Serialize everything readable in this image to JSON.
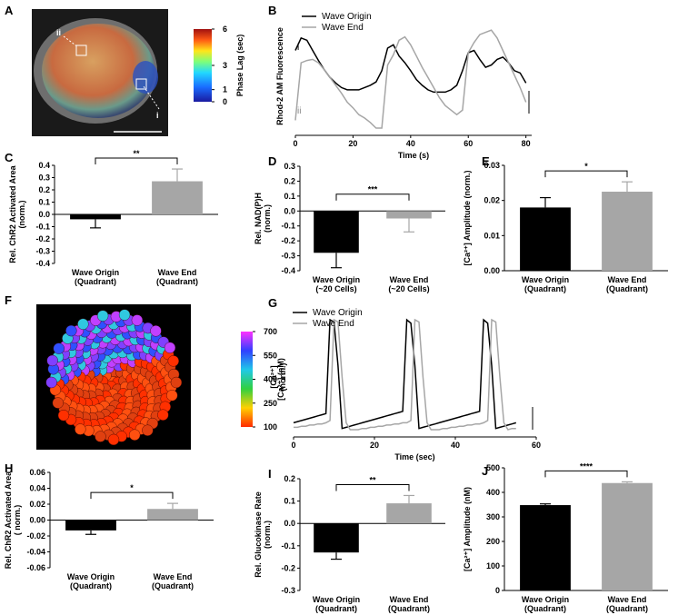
{
  "chart_data": [
    {
      "type": "image",
      "panel": "A",
      "colorbar_label": "Phase Lag (sec)",
      "colorbar_lim": [
        0,
        6
      ],
      "colorbar_ticks": [
        6,
        3,
        1,
        0
      ],
      "annotations": [
        "ii",
        "i"
      ]
    },
    {
      "type": "line",
      "panel": "B",
      "ylabel": "Rhod-2 AM  Fluorescence",
      "xlabel": "Time (s)",
      "annotations": [
        "i",
        "ii"
      ],
      "x": [
        0,
        2,
        4,
        6,
        8,
        10,
        12,
        14,
        16,
        18,
        20,
        22,
        24,
        26,
        28,
        30,
        32,
        34,
        36,
        38,
        40,
        42,
        44,
        46,
        48,
        50,
        52,
        54,
        56,
        58,
        60,
        62,
        64,
        66,
        68,
        70,
        72,
        74,
        76,
        78,
        80
      ],
      "xlim": [
        0,
        82
      ],
      "xticks": [
        0,
        20,
        40,
        60,
        80
      ],
      "ylim": [
        0,
        1
      ],
      "series": [
        {
          "name": "Wave Origin",
          "color": "#000000",
          "values": [
            0.73,
            0.84,
            0.82,
            0.73,
            0.64,
            0.56,
            0.49,
            0.44,
            0.4,
            0.38,
            0.38,
            0.38,
            0.4,
            0.42,
            0.45,
            0.55,
            0.75,
            0.78,
            0.68,
            0.62,
            0.55,
            0.47,
            0.42,
            0.38,
            0.36,
            0.36,
            0.36,
            0.38,
            0.42,
            0.55,
            0.71,
            0.73,
            0.65,
            0.58,
            0.6,
            0.65,
            0.67,
            0.62,
            0.55,
            0.53,
            0.44
          ]
        },
        {
          "name": "Wave  End",
          "color": "#a6a6a6",
          "values": [
            0.11,
            0.62,
            0.64,
            0.65,
            0.62,
            0.56,
            0.49,
            0.42,
            0.35,
            0.27,
            0.22,
            0.16,
            0.13,
            0.09,
            0.04,
            0.04,
            0.6,
            0.69,
            0.82,
            0.85,
            0.78,
            0.68,
            0.58,
            0.49,
            0.4,
            0.31,
            0.24,
            0.2,
            0.16,
            0.2,
            0.71,
            0.8,
            0.87,
            0.89,
            0.91,
            0.84,
            0.73,
            0.62,
            0.51,
            0.4,
            0.27
          ]
        }
      ]
    },
    {
      "type": "bar",
      "panel": "C",
      "ylabel": "Rel. ChR2  Activated  Area\n(norm.)",
      "categories": [
        "Wave Origin\n(Quadrant)",
        "Wave End\n(Quadrant)"
      ],
      "values": [
        -0.04,
        0.27
      ],
      "errors": [
        0.07,
        0.1
      ],
      "colors": [
        "#000000",
        "#a6a6a6"
      ],
      "significance": "**",
      "ylim": [
        -0.4,
        0.4
      ],
      "yticks": [
        0.4,
        0.3,
        0.2,
        0.1,
        {
          "value": 0,
          "label": "0.0"
        },
        -0.1,
        -0.2,
        -0.3,
        -0.4
      ]
    },
    {
      "type": "bar",
      "panel": "D",
      "ylabel": "Rel. NAD(P)H\n(norm.)",
      "categories": [
        "Wave Origin\n(~20 Cells)",
        "Wave End\n(~20 Cells)"
      ],
      "values": [
        -0.28,
        -0.05
      ],
      "errors": [
        0.1,
        0.09
      ],
      "colors": [
        "#000000",
        "#a6a6a6"
      ],
      "significance": "***",
      "ylim": [
        -0.4,
        0.3
      ],
      "yticks": [
        0.3,
        0.2,
        0.1,
        {
          "value": 0,
          "label": "0.0"
        },
        -0.1,
        -0.2,
        -0.3,
        -0.4
      ]
    },
    {
      "type": "bar",
      "panel": "E",
      "ylabel": "[Ca²⁺] Amplitude (norm.)",
      "categories": [
        "Wave Origin\n(Quadrant)",
        "Wave End\n(Quadrant)"
      ],
      "values": [
        0.018,
        0.0225
      ],
      "errors": [
        0.0028,
        0.0028
      ],
      "colors": [
        "#000000",
        "#a6a6a6"
      ],
      "significance": "*",
      "ylim": [
        0,
        0.03
      ],
      "yticks": [
        {
          "value": 0.03,
          "label": "0.03"
        },
        {
          "value": 0.02,
          "label": "0.02"
        },
        {
          "value": 0.01,
          "label": "0.01"
        },
        {
          "value": 0,
          "label": "0.00"
        }
      ]
    },
    {
      "type": "image",
      "panel": "F",
      "colorbar_label": "[Ca²⁺] (nM)",
      "colorbar_lim": [
        100,
        700
      ],
      "colorbar_ticks": [
        700,
        550,
        400,
        250,
        100
      ]
    },
    {
      "type": "line",
      "panel": "G",
      "ylabel": "[Ca²⁺]\n(norm.)",
      "xlabel": "Time (sec)",
      "x": [
        0,
        1,
        2,
        3,
        4,
        5,
        6,
        7,
        8,
        9,
        10,
        11,
        12,
        13,
        14,
        15,
        16,
        17,
        18,
        19,
        20,
        21,
        22,
        23,
        24,
        25,
        26,
        27,
        28,
        29,
        30,
        31,
        32,
        33,
        34,
        35,
        36,
        37,
        38,
        39,
        40,
        41,
        42,
        43,
        44,
        45,
        46,
        47,
        48,
        49,
        50,
        51,
        52,
        53,
        54,
        55
      ],
      "xlim": [
        0,
        60
      ],
      "xticks": [
        0,
        20,
        40,
        60
      ],
      "ylim": [
        0,
        1
      ],
      "series": [
        {
          "name": "Wave Origin",
          "color": "#000000",
          "values": [
            0.1,
            0.11,
            0.12,
            0.13,
            0.14,
            0.15,
            0.16,
            0.17,
            0.18,
            1.0,
            0.98,
            0.6,
            0.05,
            0.06,
            0.07,
            0.08,
            0.09,
            0.1,
            0.11,
            0.12,
            0.13,
            0.14,
            0.15,
            0.16,
            0.17,
            0.18,
            0.19,
            0.2,
            1.0,
            0.97,
            0.6,
            0.05,
            0.06,
            0.07,
            0.08,
            0.09,
            0.1,
            0.11,
            0.12,
            0.13,
            0.14,
            0.15,
            0.16,
            0.17,
            0.18,
            0.19,
            0.2,
            1.0,
            0.97,
            0.6,
            0.05,
            0.06,
            0.07,
            0.08,
            0.09,
            0.1
          ]
        },
        {
          "name": "Wave End",
          "color": "#a6a6a6",
          "values": [
            0.06,
            0.06,
            0.07,
            0.07,
            0.08,
            0.08,
            0.09,
            0.09,
            0.1,
            0.12,
            1.0,
            0.98,
            0.5,
            0.1,
            0.04,
            0.04,
            0.04,
            0.05,
            0.05,
            0.06,
            0.06,
            0.07,
            0.07,
            0.08,
            0.08,
            0.09,
            0.09,
            0.1,
            0.1,
            0.12,
            1.0,
            0.98,
            0.5,
            0.1,
            0.04,
            0.04,
            0.04,
            0.05,
            0.05,
            0.06,
            0.06,
            0.07,
            0.07,
            0.08,
            0.08,
            0.09,
            0.09,
            0.1,
            0.12,
            1.0,
            0.98,
            0.5,
            0.1,
            0.04,
            0.05,
            0.05
          ]
        }
      ]
    },
    {
      "type": "bar",
      "panel": "H",
      "ylabel": "Rel. ChR2 Activated  Area\n( norm.)",
      "categories": [
        "Wave Origin\n(Quadrant)",
        "Wave End\n(Quadrant)"
      ],
      "values": [
        -0.013,
        0.014
      ],
      "errors": [
        0.005,
        0.007
      ],
      "colors": [
        "#000000",
        "#a6a6a6"
      ],
      "significance": "*",
      "ylim": [
        -0.06,
        0.06
      ],
      "yticks": [
        {
          "value": 0.06,
          "label": "0.06"
        },
        {
          "value": 0.04,
          "label": "0.04"
        },
        {
          "value": 0.02,
          "label": "0.02"
        },
        {
          "value": 0,
          "label": "0.00"
        },
        {
          "value": -0.02,
          "label": "-0.02"
        },
        {
          "value": -0.04,
          "label": "-0.04"
        },
        {
          "value": -0.06,
          "label": "-0.06"
        }
      ]
    },
    {
      "type": "bar",
      "panel": "I",
      "ylabel": "Rel. Glucokinase  Rate\n(norm.)",
      "categories": [
        "Wave Origin\n(Quadrant)",
        "Wave End\n(Quadrant)"
      ],
      "values": [
        -0.13,
        0.09
      ],
      "errors": [
        0.03,
        0.035
      ],
      "colors": [
        "#000000",
        "#a6a6a6"
      ],
      "significance": "**",
      "ylim": [
        -0.3,
        0.2
      ],
      "yticks": [
        0.2,
        0.1,
        {
          "value": 0,
          "label": "0.0"
        },
        -0.1,
        -0.2,
        -0.3
      ]
    },
    {
      "type": "bar",
      "panel": "J",
      "ylabel": "[Ca²⁺] Amplitude (nM)",
      "categories": [
        "Wave Origin\n(Quadrant)",
        "Wave End\n(Quadrant)"
      ],
      "values": [
        348,
        438
      ],
      "errors": [
        5,
        5
      ],
      "colors": [
        "#000000",
        "#a6a6a6"
      ],
      "significance": "****",
      "ylim": [
        0,
        500
      ],
      "yticks": [
        500,
        400,
        300,
        200,
        100,
        0
      ]
    }
  ]
}
